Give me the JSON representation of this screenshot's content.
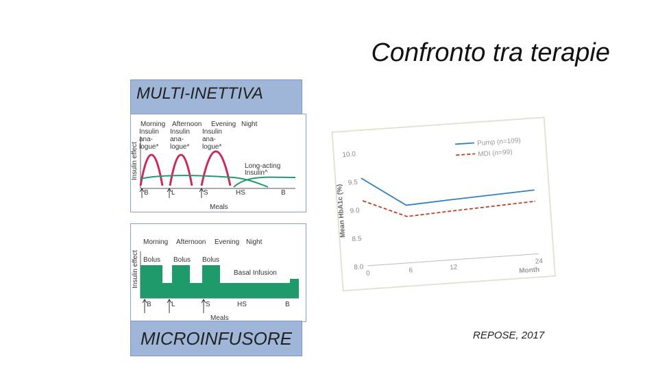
{
  "slide": {
    "title": "Confronto tra terapie",
    "citation": "REPOSE, 2017"
  },
  "mdi_panel": {
    "label": "MULTI-INETTIVA",
    "header": [
      "Morning",
      "Afternoon",
      "Evening",
      "Night"
    ],
    "insulin_labels": [
      "Insulin\nana-\nlogue*",
      "Insulin\nana-\nlogue*",
      "Insulin\nana-\nlogue*"
    ],
    "basal_label": "Long-acting\nInsulin^",
    "y_label": "Insulin effect",
    "meals": [
      "B",
      "L",
      "S",
      "HS",
      "B"
    ],
    "x_label": "Meals",
    "colors": {
      "bolus": "#cc2a5a",
      "basal": "#1f9a6a"
    }
  },
  "csii_panel": {
    "label": "MICROINFUSORE",
    "header": [
      "Morning",
      "Afternoon",
      "Evening",
      "Night"
    ],
    "bolus_labels": [
      "Bolus",
      "Bolus",
      "Bolus"
    ],
    "basal_label": "Basal Infusion",
    "y_label": "Insulin effect",
    "meals": [
      "B",
      "L",
      "S",
      "HS",
      "B"
    ],
    "x_label": "Meals",
    "colors": {
      "fill": "#1f9a6a"
    }
  },
  "chart_data": {
    "type": "line",
    "xlabel": "Month",
    "ylabel": "Mean HbA1c (%)",
    "x_ticks": [
      0,
      6,
      12,
      24
    ],
    "y_ticks": [
      8.0,
      8.5,
      9.0,
      9.5,
      10.0
    ],
    "xlim": [
      0,
      24
    ],
    "ylim": [
      8.0,
      10.0
    ],
    "series": [
      {
        "name": "Pump (n=109)",
        "color": "#2f7fc1",
        "dash": false,
        "x": [
          0,
          6,
          12,
          24
        ],
        "y": [
          9.55,
          9.02,
          9.06,
          9.13
        ]
      },
      {
        "name": "MDI (n=99)",
        "color": "#c23b22",
        "dash": true,
        "x": [
          0,
          6,
          12,
          24
        ],
        "y": [
          9.15,
          8.82,
          8.86,
          8.93
        ]
      }
    ],
    "legend": "top-right"
  }
}
